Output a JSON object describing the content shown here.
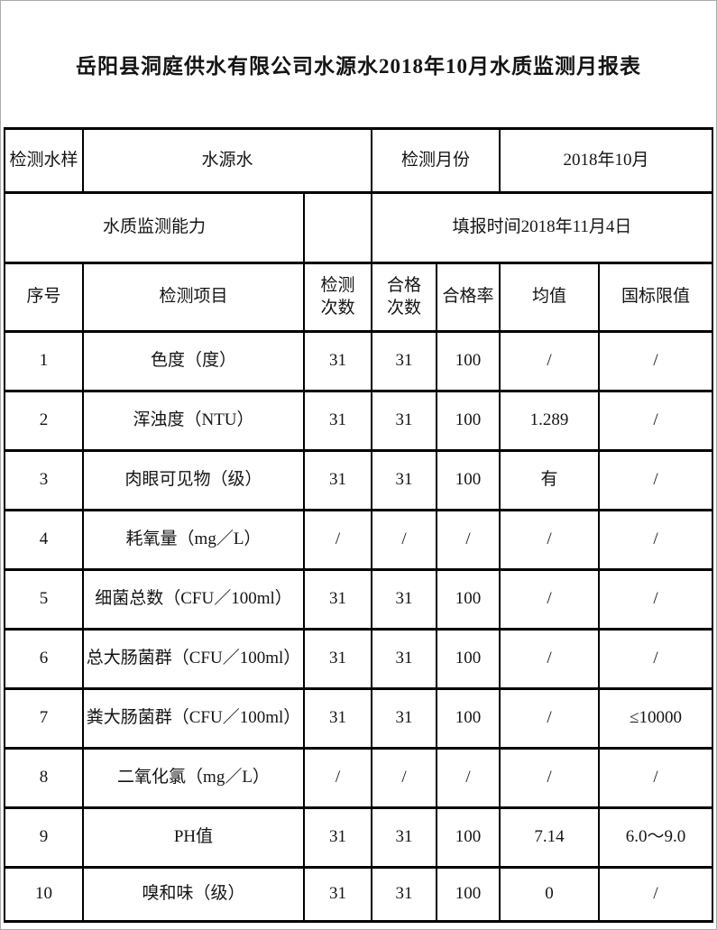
{
  "title": "岳阳县洞庭供水有限公司水源水2018年10月水质监测月报表",
  "info": {
    "sample_label": "检测水样",
    "sample_value": "水源水",
    "month_label": "检测月份",
    "month_value": "2018年10月",
    "capability_label": "水质监测能力",
    "report_time": "填报时间2018年11月4日"
  },
  "table": {
    "headers": [
      "序号",
      "检测项目",
      "检测\n次数",
      "合格\n次数",
      "合格率",
      "均值",
      "国标限值"
    ],
    "rows": [
      [
        "1",
        "色度（度）",
        "31",
        "31",
        "100",
        "/",
        "/"
      ],
      [
        "2",
        "浑浊度（NTU）",
        "31",
        "31",
        "100",
        "1.289",
        "/"
      ],
      [
        "3",
        "肉眼可见物（级）",
        "31",
        "31",
        "100",
        "有",
        "/"
      ],
      [
        "4",
        "耗氧量（mg／L）",
        "/",
        "/",
        "/",
        "/",
        "/"
      ],
      [
        "5",
        "细菌总数（CFU／100ml）",
        "31",
        "31",
        "100",
        "/",
        "/"
      ],
      [
        "6",
        "总大肠菌群（CFU／100ml）",
        "31",
        "31",
        "100",
        "/",
        "/"
      ],
      [
        "7",
        "粪大肠菌群（CFU／100ml）",
        "31",
        "31",
        "100",
        "/",
        "≤10000"
      ],
      [
        "8",
        "二氧化氯（mg／L）",
        "/",
        "/",
        "/",
        "/",
        "/"
      ],
      [
        "9",
        "PH值",
        "31",
        "31",
        "100",
        "7.14",
        "6.0～9.0"
      ],
      [
        "10",
        "嗅和味（级）",
        "31",
        "31",
        "100",
        "0",
        "/"
      ]
    ]
  },
  "colors": {
    "border": "#000000",
    "text": "#141414",
    "page_edge": "#ababab",
    "background": "#ffffff"
  }
}
